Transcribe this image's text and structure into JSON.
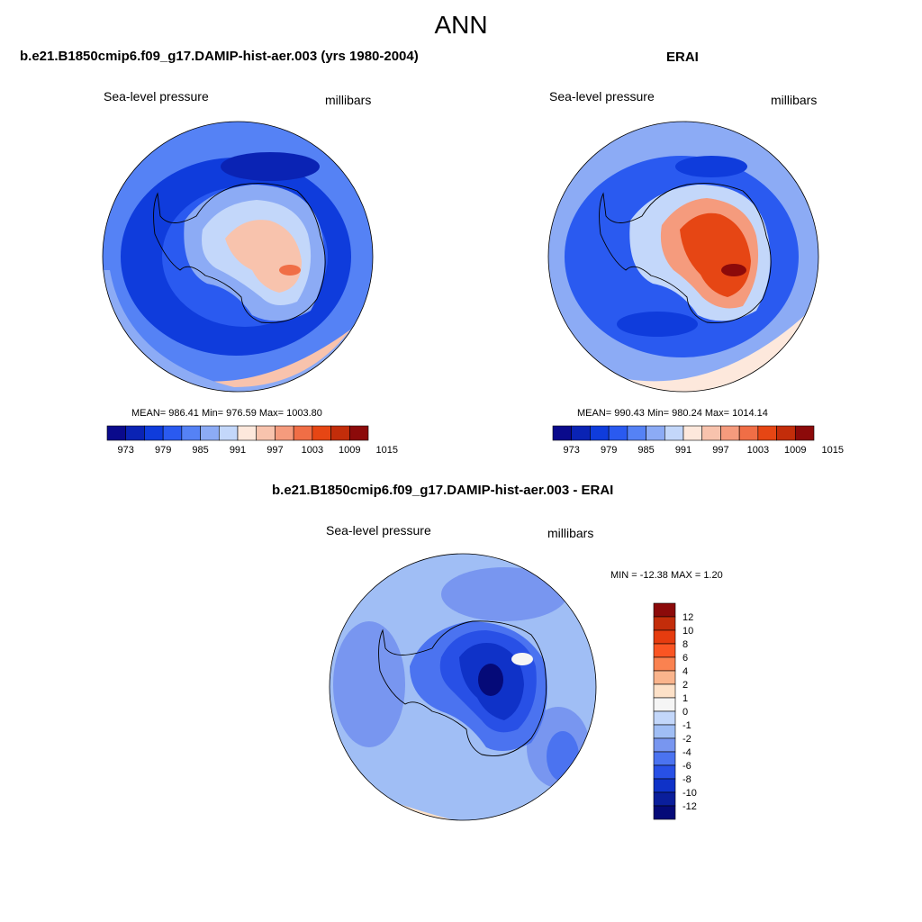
{
  "figure": {
    "title": "ANN",
    "panels": [
      {
        "id": "model",
        "title": "b.e21.B1850cmip6.f09_g17.DAMIP-hist-aer.003 (yrs 1980-2004)",
        "left_label": "Sea-level pressure",
        "right_label": "millibars",
        "stats": "MEAN= 986.41  Min= 976.59  Max= 1003.80",
        "colorbar_ticks": [
          "973",
          "979",
          "985",
          "991",
          "997",
          "1003",
          "1009",
          "1015"
        ]
      },
      {
        "id": "obs",
        "title": "ERAI",
        "left_label": "Sea-level pressure",
        "right_label": "millibars",
        "stats": "MEAN= 990.43  Min= 980.24  Max= 1014.14",
        "colorbar_ticks": [
          "973",
          "979",
          "985",
          "991",
          "997",
          "1003",
          "1009",
          "1015"
        ]
      },
      {
        "id": "diff",
        "title": "b.e21.B1850cmip6.f09_g17.DAMIP-hist-aer.003 - ERAI",
        "left_label": "Sea-level pressure",
        "right_label": "millibars",
        "stats": "MIN = -12.38 MAX =   1.20",
        "colorbar_ticks": [
          "12",
          "10",
          "8",
          "6",
          "4",
          "2",
          "1",
          "0",
          "-1",
          "-2",
          "-4",
          "-6",
          "-8",
          "-10",
          "-12"
        ]
      }
    ]
  },
  "colors": {
    "slp_scale": [
      "#0a0a8c",
      "#0a23b4",
      "#0f3cdc",
      "#2a5af0",
      "#5582f5",
      "#8cabf5",
      "#c3d7fa",
      "#fde8dc",
      "#f8c3ad",
      "#f59b7d",
      "#f06e46",
      "#e64614",
      "#c32d0a",
      "#8c0a0a"
    ],
    "diff_scale": [
      "#8c0a0a",
      "#c32d0a",
      "#e63c0f",
      "#fa5523",
      "#fa8250",
      "#fab48c",
      "#fde1c8",
      "#f5f5f5",
      "#c3d7fa",
      "#a0bef5",
      "#7896f0",
      "#4b73f0",
      "#2850e6",
      "#0f32c8",
      "#0a1e9b",
      "#050a78"
    ]
  },
  "chart_data": [
    {
      "type": "heatmap",
      "title": "b.e21.B1850cmip6.f09_g17.DAMIP-hist-aer.003 (yrs 1980-2004)",
      "variable": "Sea-level pressure",
      "units": "millibars",
      "projection": "south polar stereographic",
      "mean": 986.41,
      "min": 976.59,
      "max": 1003.8,
      "contour_levels": [
        973,
        976,
        979,
        982,
        985,
        988,
        991,
        994,
        997,
        1000,
        1003,
        1006,
        1009,
        1012,
        1015
      ]
    },
    {
      "type": "heatmap",
      "title": "ERAI",
      "variable": "Sea-level pressure",
      "units": "millibars",
      "projection": "south polar stereographic",
      "mean": 990.43,
      "min": 980.24,
      "max": 1014.14,
      "contour_levels": [
        973,
        976,
        979,
        982,
        985,
        988,
        991,
        994,
        997,
        1000,
        1003,
        1006,
        1009,
        1012,
        1015
      ]
    },
    {
      "type": "heatmap",
      "title": "b.e21.B1850cmip6.f09_g17.DAMIP-hist-aer.003 - ERAI",
      "variable": "Sea-level pressure",
      "units": "millibars",
      "projection": "south polar stereographic",
      "min": -12.38,
      "max": 1.2,
      "contour_levels": [
        -12,
        -10,
        -8,
        -6,
        -4,
        -2,
        -1,
        0,
        1,
        2,
        4,
        6,
        8,
        10,
        12
      ]
    }
  ]
}
